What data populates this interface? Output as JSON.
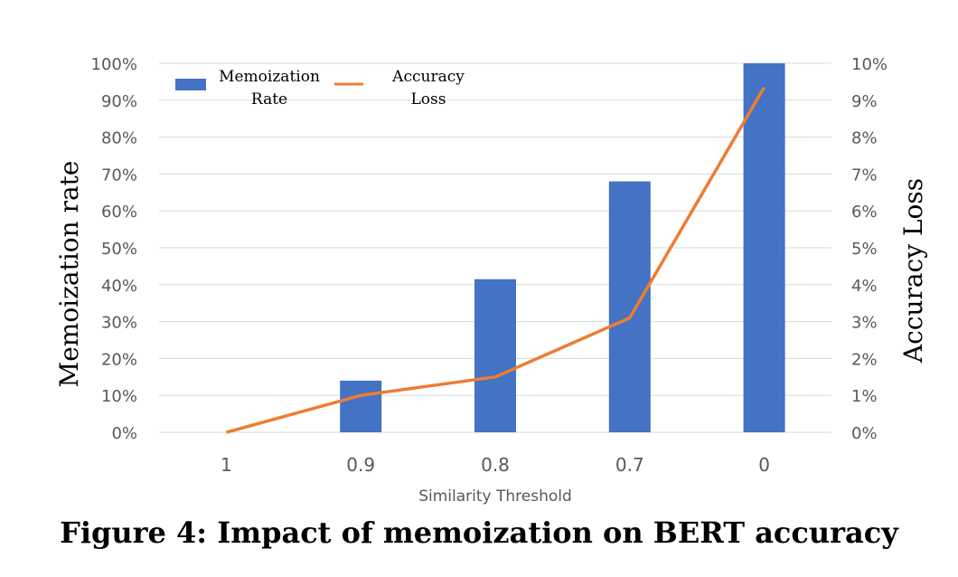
{
  "caption": "Figure 4: Impact of memoization on BERT accuracy",
  "chart_data": {
    "type": "bar",
    "categories": [
      "1",
      "0.9",
      "0.8",
      "0.7",
      "0"
    ],
    "xlabel": "Similarity Threshold",
    "ylabel": "Memoization rate",
    "y2label": "Accuracy Loss",
    "ylim": [
      0,
      100
    ],
    "y2lim": [
      0,
      10
    ],
    "yticks": [
      "0%",
      "10%",
      "20%",
      "30%",
      "40%",
      "50%",
      "60%",
      "70%",
      "80%",
      "90%",
      "100%"
    ],
    "y2ticks": [
      "0%",
      "1%",
      "2%",
      "3%",
      "4%",
      "5%",
      "6%",
      "7%",
      "8%",
      "9%",
      "10%"
    ],
    "grid": true,
    "legend_position": "top-left",
    "series": [
      {
        "name": "Memoization Rate",
        "type": "bar",
        "axis": "left",
        "color": "#4472c4",
        "values": [
          0,
          14,
          41.5,
          68,
          100
        ]
      },
      {
        "name": "Accuracy Loss",
        "type": "line",
        "axis": "right",
        "color": "#ed7d31",
        "values": [
          0,
          1.0,
          1.5,
          3.1,
          9.35
        ]
      }
    ],
    "legend": {
      "bar": [
        "Memoization",
        "Rate"
      ],
      "line": [
        "Accuracy",
        "Loss"
      ]
    }
  }
}
